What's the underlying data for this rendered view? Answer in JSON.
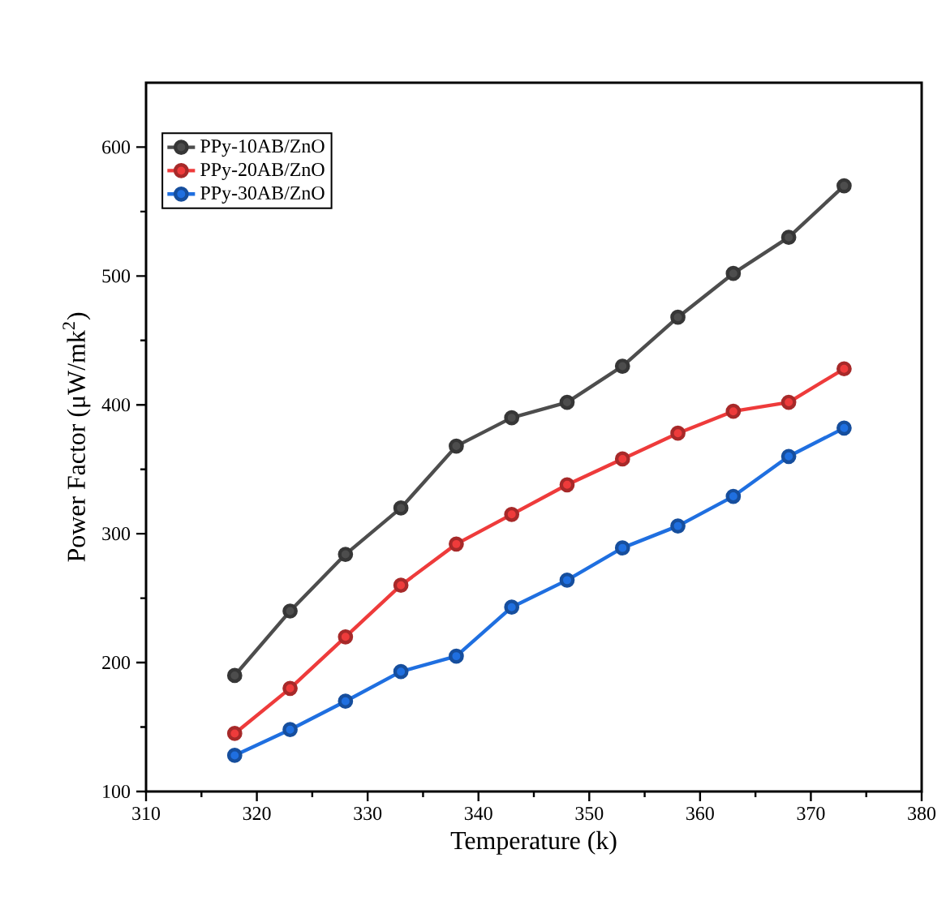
{
  "chart_data": {
    "type": "line",
    "xlabel": "Temperature (k)",
    "ylabel": "Power Factor (μW/mk$^{2}$)",
    "x": [
      318,
      323,
      328,
      333,
      338,
      343,
      348,
      353,
      358,
      363,
      368,
      373
    ],
    "series": [
      {
        "name": "PPy-10AB/ZnO",
        "color": "#4d4d4d",
        "values": [
          190,
          240,
          284,
          320,
          368,
          390,
          402,
          430,
          468,
          502,
          530,
          570
        ]
      },
      {
        "name": "PPy-20AB/ZnO",
        "color": "#ee3b3b",
        "values": [
          145,
          180,
          220,
          260,
          292,
          315,
          338,
          358,
          378,
          395,
          402,
          428
        ]
      },
      {
        "name": "PPy-30AB/ZnO",
        "color": "#1f6fe0",
        "values": [
          128,
          148,
          170,
          193,
          205,
          243,
          264,
          289,
          306,
          329,
          360,
          382
        ]
      }
    ],
    "xlim": [
      310,
      380
    ],
    "xticks": [
      310,
      320,
      330,
      340,
      350,
      360,
      370,
      380
    ],
    "ylim": [
      100,
      650
    ],
    "yticks": [
      100,
      200,
      300,
      400,
      500,
      600
    ],
    "legend": "top left",
    "marker": "circle",
    "line_style": "solid",
    "grid": false
  }
}
